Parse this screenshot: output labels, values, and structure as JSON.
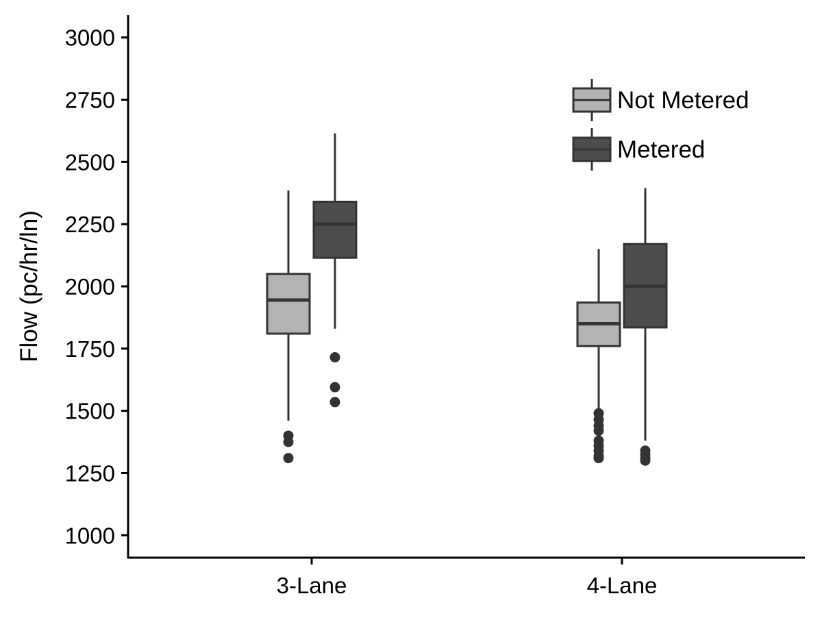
{
  "chart_data": {
    "type": "box",
    "xlabel": "",
    "ylabel": "Flow (pc/hr/ln)",
    "ylim": [
      910,
      3090
    ],
    "yticks": [
      1000,
      1250,
      1500,
      1750,
      2000,
      2250,
      2500,
      2750,
      3000
    ],
    "ytick_labels": [
      "1000",
      "1250",
      "1500",
      "1750",
      "2000",
      "2250",
      "2500",
      "2750",
      "3000"
    ],
    "categories": [
      "3-Lane",
      "4-Lane"
    ],
    "grid": false,
    "legend_position": "top-right",
    "series": [
      {
        "name": "Not Metered",
        "color": "#b3b3b3",
        "boxes": [
          {
            "category": "3-Lane",
            "whisker_low": 1460,
            "q1": 1810,
            "median": 1945,
            "q3": 2050,
            "whisker_high": 2385,
            "outliers": [
              1400,
              1375,
              1310
            ]
          },
          {
            "category": "4-Lane",
            "whisker_low": 1500,
            "q1": 1760,
            "median": 1850,
            "q3": 1935,
            "whisker_high": 2150,
            "outliers": [
              1490,
              1465,
              1440,
              1420,
              1380,
              1360,
              1340,
              1320,
              1310
            ]
          }
        ]
      },
      {
        "name": "Metered",
        "color": "#4d4d4d",
        "boxes": [
          {
            "category": "3-Lane",
            "whisker_low": 1830,
            "q1": 2115,
            "median": 2250,
            "q3": 2340,
            "whisker_high": 2615,
            "outliers": [
              1715,
              1595,
              1535
            ]
          },
          {
            "category": "4-Lane",
            "whisker_low": 1380,
            "q1": 1835,
            "median": 2000,
            "q3": 2170,
            "whisker_high": 2395,
            "outliers": [
              1340,
              1325,
              1310,
              1300
            ]
          }
        ]
      }
    ]
  }
}
